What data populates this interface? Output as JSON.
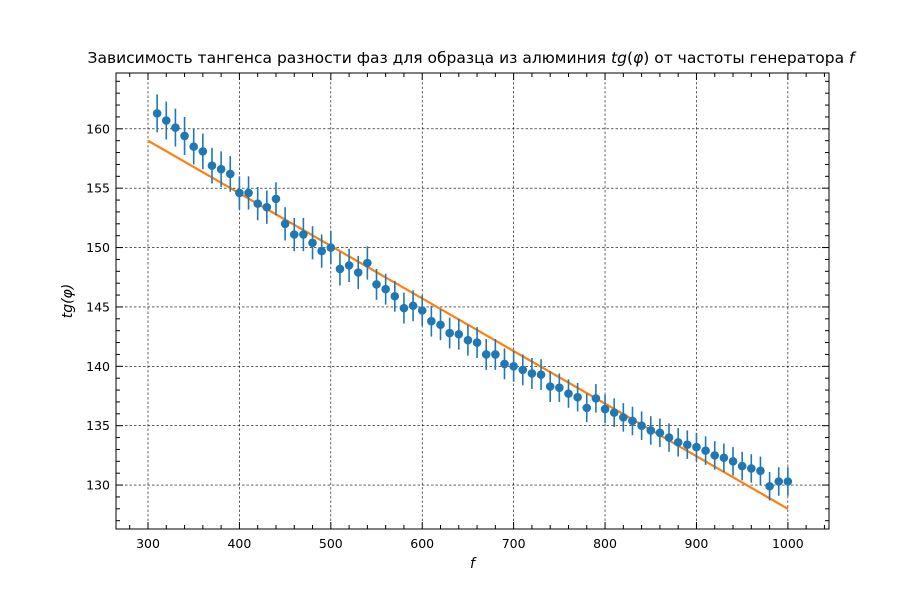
{
  "chart_data": {
    "type": "scatter",
    "title": "Зависимость тангенса разности фаз для образца из алюминия tg(φ) от частоты генератора f",
    "xlabel": "f",
    "ylabel": "tg(φ)",
    "xlim": [
      265,
      1045
    ],
    "ylim": [
      126.3,
      164.7
    ],
    "xticks": [
      "300",
      "400",
      "500",
      "600",
      "700",
      "800",
      "900",
      "1000"
    ],
    "yticks": [
      "130",
      "135",
      "140",
      "145",
      "150",
      "155",
      "160"
    ],
    "grid": true,
    "colors": {
      "points": "#1f77b4",
      "fit": "#ff7f0e"
    },
    "series": [
      {
        "kind": "errorbar",
        "x": [
          310,
          320,
          330,
          340,
          350,
          360,
          370,
          380,
          390,
          400,
          410,
          420,
          430,
          440,
          450,
          460,
          470,
          480,
          490,
          500,
          510,
          520,
          530,
          540,
          550,
          560,
          570,
          580,
          590,
          600,
          610,
          620,
          630,
          640,
          650,
          660,
          670,
          680,
          690,
          700,
          710,
          720,
          730,
          740,
          750,
          760,
          770,
          780,
          790,
          800,
          810,
          820,
          830,
          840,
          850,
          860,
          870,
          880,
          890,
          900,
          910,
          920,
          930,
          940,
          950,
          960,
          970,
          980,
          990,
          1000
        ],
        "y": [
          161.3,
          160.7,
          160.1,
          159.4,
          158.5,
          158.1,
          156.9,
          156.6,
          156.2,
          154.6,
          154.6,
          153.7,
          153.4,
          154.1,
          152.0,
          151.1,
          151.1,
          150.4,
          149.7,
          150.0,
          148.2,
          148.5,
          147.9,
          148.7,
          146.9,
          146.5,
          145.9,
          144.9,
          145.1,
          144.7,
          143.8,
          143.5,
          142.8,
          142.7,
          142.2,
          142.0,
          141.0,
          141.0,
          140.2,
          140.0,
          139.7,
          139.4,
          139.3,
          138.3,
          138.2,
          137.7,
          137.4,
          136.5,
          137.3,
          136.4,
          136.1,
          135.7,
          135.4,
          135.0,
          134.6,
          134.4,
          134.0,
          133.6,
          133.4,
          133.2,
          132.9,
          132.5,
          132.3,
          132.0,
          131.6,
          131.4,
          131.2,
          129.9,
          130.3,
          130.3
        ],
        "yerr": [
          1.6,
          1.6,
          1.6,
          1.6,
          1.5,
          1.5,
          1.5,
          1.5,
          1.5,
          1.4,
          1.4,
          1.4,
          1.4,
          1.4,
          1.4,
          1.4,
          1.4,
          1.4,
          1.4,
          1.4,
          1.4,
          1.4,
          1.4,
          1.4,
          1.3,
          1.3,
          1.3,
          1.3,
          1.3,
          1.3,
          1.3,
          1.3,
          1.3,
          1.3,
          1.3,
          1.3,
          1.3,
          1.3,
          1.3,
          1.3,
          1.3,
          1.3,
          1.3,
          1.3,
          1.2,
          1.2,
          1.2,
          1.2,
          1.2,
          1.2,
          1.2,
          1.2,
          1.2,
          1.2,
          1.2,
          1.2,
          1.2,
          1.2,
          1.2,
          1.2,
          1.2,
          1.2,
          1.2,
          1.2,
          1.2,
          1.2,
          1.2,
          1.2,
          1.2,
          1.2
        ]
      },
      {
        "kind": "line",
        "x": [
          300,
          1000
        ],
        "y": [
          159.0,
          128.0
        ]
      }
    ]
  }
}
